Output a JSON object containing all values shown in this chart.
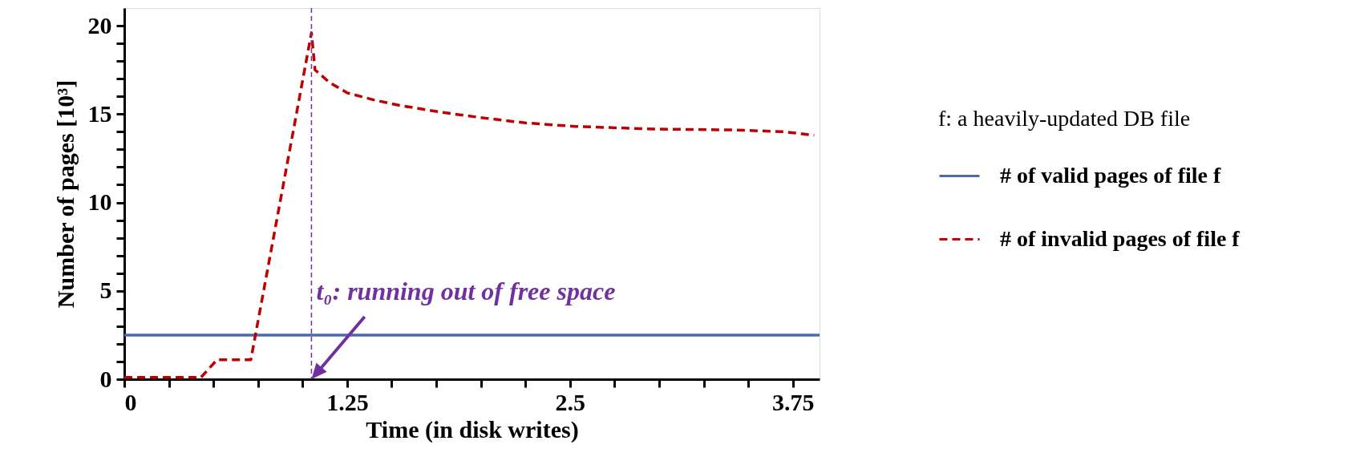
{
  "chart_data": {
    "type": "line",
    "xlabel": "Time (in disk writes)",
    "ylabel": "Number of pages [10³]",
    "legend_title": "f: a heavily-updated DB file",
    "legend": "right",
    "grid": false,
    "marker": "none",
    "xlim": [
      0,
      3.9
    ],
    "ylim": [
      0,
      21
    ],
    "xticks": [
      0,
      {
        "value": 0.25,
        "label": null
      },
      {
        "value": 0.5,
        "label": null
      },
      {
        "value": 0.75,
        "label": null
      },
      {
        "value": 1,
        "label": null
      },
      1.25,
      {
        "value": 1.5,
        "label": null
      },
      {
        "value": 1.75,
        "label": null
      },
      {
        "value": 2,
        "label": null
      },
      {
        "value": 2.25,
        "label": null
      },
      2.5,
      {
        "value": 2.75,
        "label": null
      },
      {
        "value": 3,
        "label": null
      },
      {
        "value": 3.25,
        "label": null
      },
      {
        "value": 3.5,
        "label": null
      },
      3.75
    ],
    "yticks": [
      0,
      {
        "value": 1,
        "label": null
      },
      {
        "value": 2,
        "label": null
      },
      {
        "value": 3,
        "label": null
      },
      {
        "value": 4,
        "label": null
      },
      5,
      {
        "value": 6,
        "label": null
      },
      {
        "value": 7,
        "label": null
      },
      {
        "value": 8,
        "label": null
      },
      {
        "value": 9,
        "label": null
      },
      10,
      {
        "value": 11,
        "label": null
      },
      {
        "value": 12,
        "label": null
      },
      {
        "value": 13,
        "label": null
      },
      {
        "value": 14,
        "label": null
      },
      15,
      {
        "value": 16,
        "label": null
      },
      {
        "value": 17,
        "label": null
      },
      {
        "value": 18,
        "label": null
      },
      {
        "value": 19,
        "label": null
      },
      20
    ],
    "series": [
      {
        "name": "# of valid pages of file f",
        "color": "#4a6aa8",
        "line_style": "solid",
        "x": [
          0,
          3.9
        ],
        "values": [
          2.5,
          2.5
        ]
      },
      {
        "name": "# of invalid pages of file f",
        "color": "#c00000",
        "line_style": "dashed",
        "x": [
          0,
          0.43,
          0.52,
          0.71,
          1.05,
          1.07,
          1.15,
          1.25,
          1.4,
          1.54,
          1.78,
          2.0,
          2.25,
          2.53,
          2.98,
          3.43,
          3.7,
          3.87
        ],
        "values": [
          0.1,
          0.1,
          1.1,
          1.1,
          19.6,
          17.5,
          16.8,
          16.2,
          15.8,
          15.5,
          15.1,
          14.8,
          14.5,
          14.3,
          14.15,
          14.1,
          14.0,
          13.8
        ]
      }
    ],
    "ref_lines": [
      {
        "axis": "x",
        "value": 1.05,
        "color": "#7030a0",
        "line_style": "dashed"
      }
    ],
    "annotations": [
      {
        "text": "t₀: running out of free space",
        "x": 1.05,
        "y": 0
      }
    ]
  }
}
